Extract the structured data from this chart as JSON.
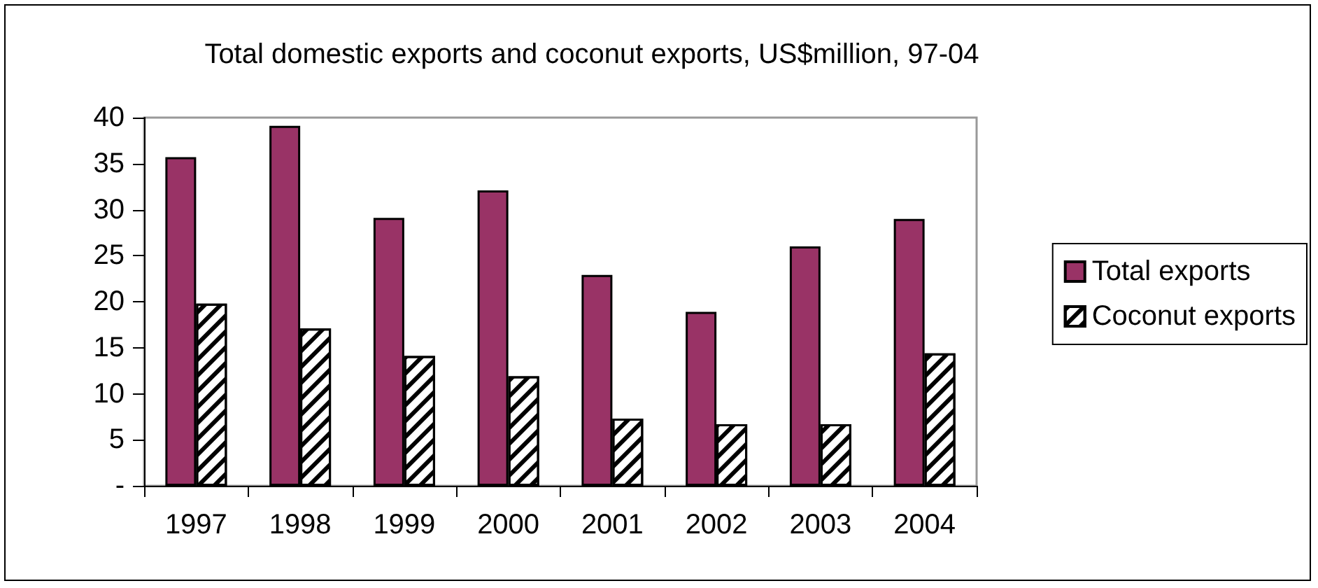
{
  "chart_data": {
    "type": "bar",
    "title": "Total domestic exports and coconut exports, US$million, 97-04",
    "categories": [
      "1997",
      "1998",
      "1999",
      "2000",
      "2001",
      "2002",
      "2003",
      "2004"
    ],
    "series": [
      {
        "name": "Total exports",
        "color": "#993366",
        "values": [
          35.7,
          39.1,
          29.1,
          32.1,
          22.9,
          18.9,
          26.0,
          29.0
        ]
      },
      {
        "name": "Coconut exports",
        "color": "#ffffff",
        "values": [
          19.8,
          17.1,
          14.1,
          11.9,
          7.3,
          6.7,
          6.7,
          14.4
        ]
      }
    ],
    "ylim": [
      0,
      40
    ],
    "yticks": [
      {
        "value": 0,
        "label": "-"
      },
      5,
      10,
      15,
      20,
      25,
      30,
      35,
      40
    ],
    "grid": false,
    "legend": "right"
  }
}
